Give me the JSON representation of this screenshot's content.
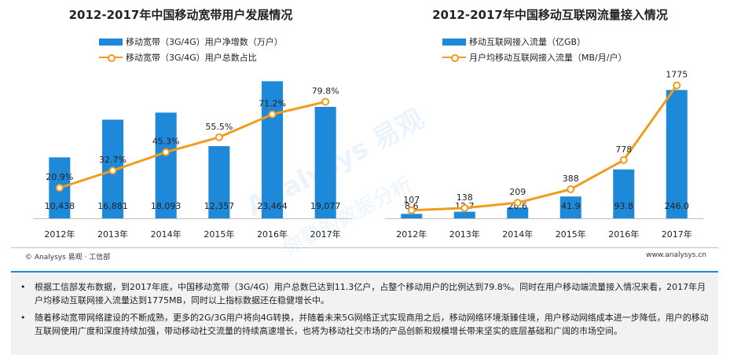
{
  "colors": {
    "bar": "#1E88D9",
    "line": "#F29B1D",
    "axis": "#bfbfbf",
    "accent": "#1E88D9"
  },
  "watermark": {
    "main": "Analysys 易观",
    "sub": "你要的数据分析"
  },
  "chart_data": [
    {
      "type": "bar",
      "title": "2012-2017年中国移动宽带用户发展情况",
      "categories": [
        "2012年",
        "2013年",
        "2014年",
        "2015年",
        "2016年",
        "2017年"
      ],
      "series": [
        {
          "name": "移动宽带（3G/4G）用户净增数（万户）",
          "kind": "bar",
          "axis": "left",
          "values": [
            10438,
            16881,
            18093,
            12357,
            23464,
            19077
          ],
          "labels": [
            "10,438",
            "16,881",
            "18,093",
            "12,357",
            "23,464",
            "19,077"
          ]
        },
        {
          "name": "移动宽带（3G/4G）用户总数占比",
          "kind": "line",
          "axis": "right",
          "values": [
            20.9,
            32.7,
            45.3,
            55.5,
            71.2,
            79.8
          ],
          "labels": [
            "20.9%",
            "32.7%",
            "45.3%",
            "55.5%",
            "71.2%",
            "79.8%"
          ]
        }
      ],
      "ylim_left": [
        0,
        25000
      ],
      "ylim_right": [
        0,
        100
      ],
      "grid": false,
      "legend": "top-left"
    },
    {
      "type": "bar",
      "title": "2012-2017年中国移动互联网流量接入情况",
      "categories": [
        "2012年",
        "2013年",
        "2014年",
        "2015年",
        "2016年",
        "2017年"
      ],
      "series": [
        {
          "name": "移动互联网接入流量（亿GB）",
          "kind": "bar",
          "axis": "left",
          "values": [
            8.6,
            12.7,
            20.6,
            41.9,
            93.8,
            246.0
          ],
          "labels": [
            "8.6",
            "12.7",
            "20.6",
            "41.9",
            "93.8",
            "246.0"
          ]
        },
        {
          "name": "月户均移动互联网接入流量（MB/月/户）",
          "kind": "line",
          "axis": "right",
          "values": [
            107,
            138,
            209,
            388,
            778,
            1775
          ],
          "labels": [
            "107",
            "138",
            "209",
            "388",
            "778",
            "1775"
          ]
        }
      ],
      "ylim_left": [
        0,
        280
      ],
      "ylim_right": [
        0,
        1950
      ],
      "grid": false,
      "legend": "top-left"
    }
  ],
  "footer": {
    "source": "© Analysys 易观 · 工信部",
    "website": "www.analysys.cn"
  },
  "notes": [
    {
      "bullet": "•",
      "text": "根据工信部发布数据，到2017年底，中国移动宽带（3G/4G）用户总数已达到11.3亿户，占整个移动用户的比例达到79.8%。同时在用户移动端流量接入情况来看，2017年月户均移动互联网接入流量达到1775MB，同时以上指标数据还在稳健增长中。"
    },
    {
      "bullet": "•",
      "text": "随着移动宽带网络建设的不断成熟，更多的2G/3G用户将向4G转换，并随着未来5G网络正式实现商用之后，移动网络环境渐臻佳境，用户移动网络成本进一步降低，用户的移动互联网使用广度和深度持续加强，带动移动社交流量的持续高速增长，也将为移动社交市场的产品创新和规模增长带来坚实的底层基础和广阔的市场空间。"
    }
  ]
}
